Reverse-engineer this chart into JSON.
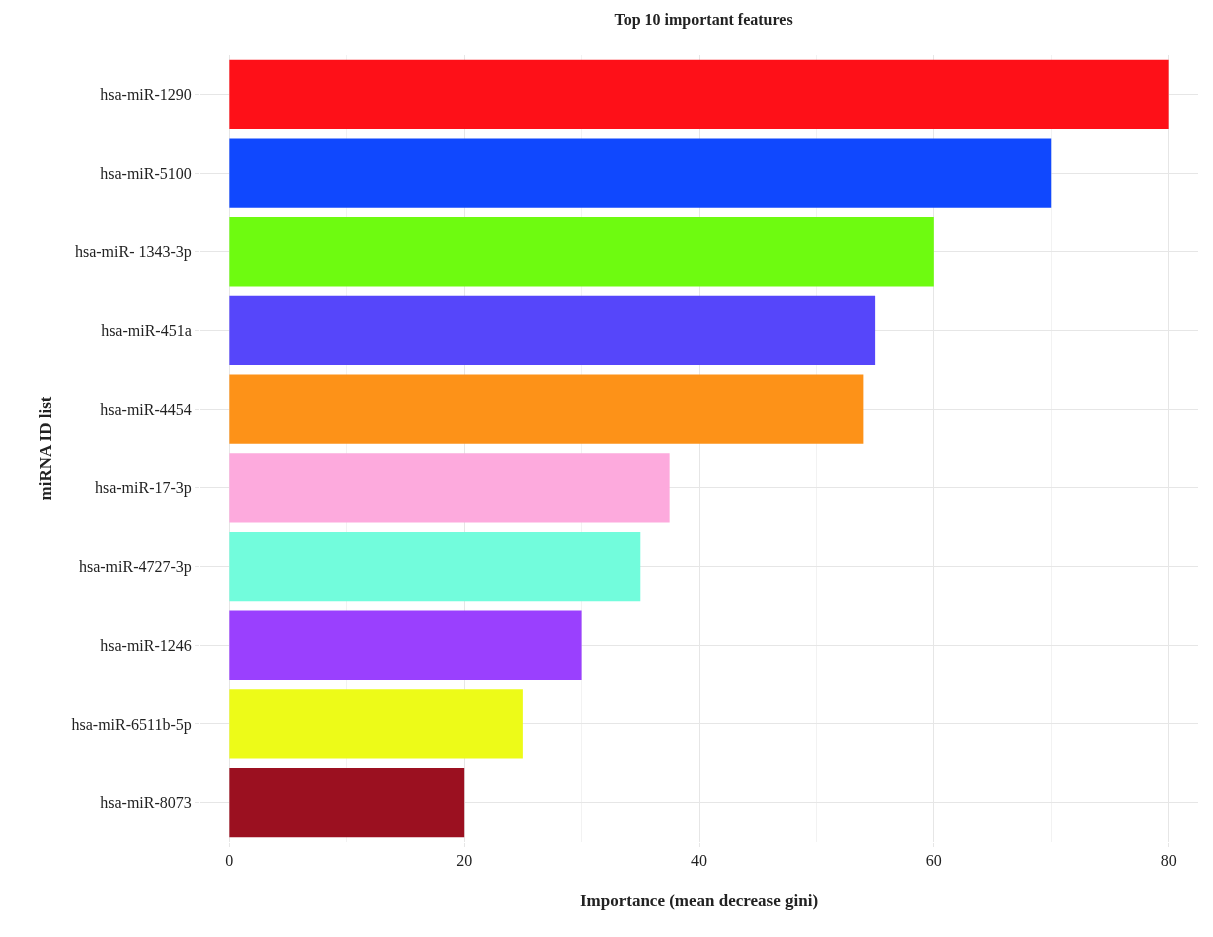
{
  "chart_data": {
    "type": "bar",
    "orientation": "horizontal",
    "title": "Top 10 important features",
    "xlabel": "Importance (mean decrease gini)",
    "ylabel": "miRNA ID list",
    "categories": [
      "hsa-miR-1290",
      "hsa-miR-5100",
      "hsa-miR- 1343-3p",
      "hsa-miR-451a",
      "hsa-miR-4454",
      "hsa-miR-17-3p",
      "hsa-miR-4727-3p",
      "hsa-miR-1246",
      "hsa-miR-6511b-5p",
      "hsa-miR-8073"
    ],
    "values": [
      80,
      70,
      60,
      55,
      54,
      37.5,
      35,
      30,
      25,
      20
    ],
    "colors": [
      "#fe1018",
      "#1048fe",
      "#6efb10",
      "#5646fa",
      "#fd9218",
      "#fdaadd",
      "#72fcdc",
      "#9a40fe",
      "#edfb18",
      "#9b1020"
    ],
    "xlim": [
      -2.5,
      82.5
    ],
    "xticks": [
      0,
      20,
      40,
      60,
      80
    ],
    "grid": true
  }
}
